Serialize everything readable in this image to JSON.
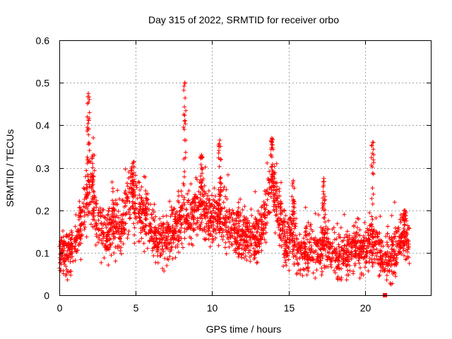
{
  "chart_data": {
    "type": "scatter",
    "title": "Day 315 of 2022, SRMTID for receiver orbo",
    "xlabel": "GPS time / hours",
    "ylabel": "SRMTID / TECUs",
    "xlim": [
      0,
      24.3
    ],
    "ylim": [
      0,
      0.6
    ],
    "xticks": [
      0,
      5,
      10,
      15,
      20
    ],
    "yticks": [
      0,
      0.1,
      0.2,
      0.3,
      0.4,
      0.5,
      0.6
    ],
    "xtick_labels": [
      "0",
      "5",
      "10",
      "15",
      "20"
    ],
    "ytick_labels": [
      "0",
      "0.1",
      "0.2",
      "0.3",
      "0.4",
      "0.5",
      "0.6"
    ],
    "grid": true,
    "marker": "+",
    "color": "#ff0000",
    "series": [
      {
        "name": "SRMTID",
        "x_range": [
          0,
          22.9
        ],
        "baseline_profile": [
          [
            0.0,
            0.11
          ],
          [
            0.5,
            0.1
          ],
          [
            1.0,
            0.12
          ],
          [
            1.5,
            0.17
          ],
          [
            1.9,
            0.25
          ],
          [
            2.2,
            0.22
          ],
          [
            2.6,
            0.15
          ],
          [
            3.0,
            0.14
          ],
          [
            3.5,
            0.17
          ],
          [
            4.0,
            0.15
          ],
          [
            4.7,
            0.24
          ],
          [
            5.2,
            0.2
          ],
          [
            5.8,
            0.17
          ],
          [
            6.5,
            0.12
          ],
          [
            7.0,
            0.13
          ],
          [
            7.5,
            0.15
          ],
          [
            8.0,
            0.19
          ],
          [
            8.5,
            0.18
          ],
          [
            9.0,
            0.21
          ],
          [
            9.5,
            0.19
          ],
          [
            10.0,
            0.17
          ],
          [
            10.5,
            0.19
          ],
          [
            11.0,
            0.16
          ],
          [
            11.5,
            0.15
          ],
          [
            12.0,
            0.14
          ],
          [
            12.5,
            0.12
          ],
          [
            13.0,
            0.14
          ],
          [
            13.5,
            0.2
          ],
          [
            13.9,
            0.26
          ],
          [
            14.3,
            0.2
          ],
          [
            14.8,
            0.12
          ],
          [
            15.2,
            0.15
          ],
          [
            15.6,
            0.11
          ],
          [
            16.0,
            0.1
          ],
          [
            16.5,
            0.11
          ],
          [
            17.0,
            0.1
          ],
          [
            17.5,
            0.12
          ],
          [
            18.0,
            0.1
          ],
          [
            18.5,
            0.09
          ],
          [
            19.0,
            0.1
          ],
          [
            19.5,
            0.11
          ],
          [
            20.0,
            0.11
          ],
          [
            20.5,
            0.12
          ],
          [
            21.0,
            0.1
          ],
          [
            21.5,
            0.09
          ],
          [
            22.0,
            0.11
          ],
          [
            22.5,
            0.14
          ],
          [
            22.9,
            0.12
          ]
        ],
        "peaks": [
          {
            "x": 1.9,
            "y": 0.475
          },
          {
            "x": 2.2,
            "y": 0.33
          },
          {
            "x": 4.8,
            "y": 0.31
          },
          {
            "x": 8.2,
            "y": 0.5
          },
          {
            "x": 9.3,
            "y": 0.33
          },
          {
            "x": 10.5,
            "y": 0.365
          },
          {
            "x": 13.9,
            "y": 0.37
          },
          {
            "x": 15.3,
            "y": 0.27
          },
          {
            "x": 17.3,
            "y": 0.275
          },
          {
            "x": 20.5,
            "y": 0.36
          },
          {
            "x": 22.6,
            "y": 0.2
          }
        ],
        "lows": [
          {
            "x": 0.7,
            "y": 0.045
          },
          {
            "x": 18.2,
            "y": 0.035
          },
          {
            "x": 19.8,
            "y": 0.04
          },
          {
            "x": 21.7,
            "y": 0.025
          }
        ],
        "outlier_markers": [
          {
            "x": 21.3,
            "y": 0.0
          }
        ]
      }
    ]
  }
}
